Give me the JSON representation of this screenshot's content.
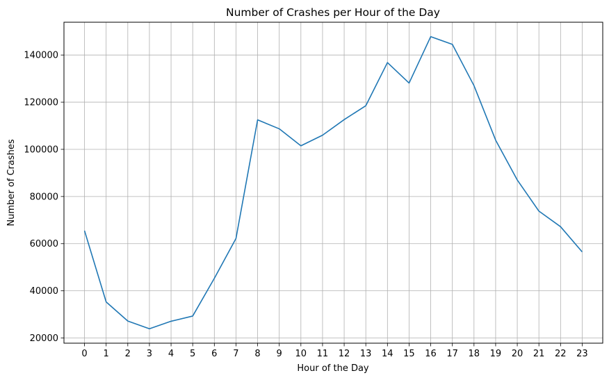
{
  "chart_data": {
    "type": "line",
    "title": "Number of Crashes per Hour of the Day",
    "xlabel": "Hour of the Day",
    "ylabel": "Number of Crashes",
    "x": [
      0,
      1,
      2,
      3,
      4,
      5,
      6,
      7,
      8,
      9,
      10,
      11,
      12,
      13,
      14,
      15,
      16,
      17,
      18,
      19,
      20,
      21,
      22,
      23
    ],
    "x_tick_labels": [
      "0",
      "1",
      "2",
      "3",
      "4",
      "5",
      "6",
      "7",
      "8",
      "9",
      "10",
      "11",
      "12",
      "13",
      "14",
      "15",
      "16",
      "17",
      "18",
      "19",
      "20",
      "21",
      "22",
      "23"
    ],
    "series": [
      {
        "values": [
          65500,
          35300,
          27200,
          23900,
          27100,
          29300,
          45300,
          62200,
          112500,
          108700,
          101500,
          106000,
          112600,
          118500,
          136800,
          128100,
          147800,
          144500,
          127000,
          103900,
          87000,
          73800,
          67200,
          56500
        ],
        "color": "#1f77b4"
      }
    ],
    "xlim": [
      -0.95,
      23.95
    ],
    "ylim": [
      17800,
      153900
    ],
    "y_ticks": [
      20000,
      40000,
      60000,
      80000,
      100000,
      120000,
      140000
    ],
    "y_tick_labels": [
      "20000",
      "40000",
      "60000",
      "80000",
      "100000",
      "120000",
      "140000"
    ],
    "grid": true,
    "grid_color": "#b0b0b0",
    "legend": "none"
  }
}
